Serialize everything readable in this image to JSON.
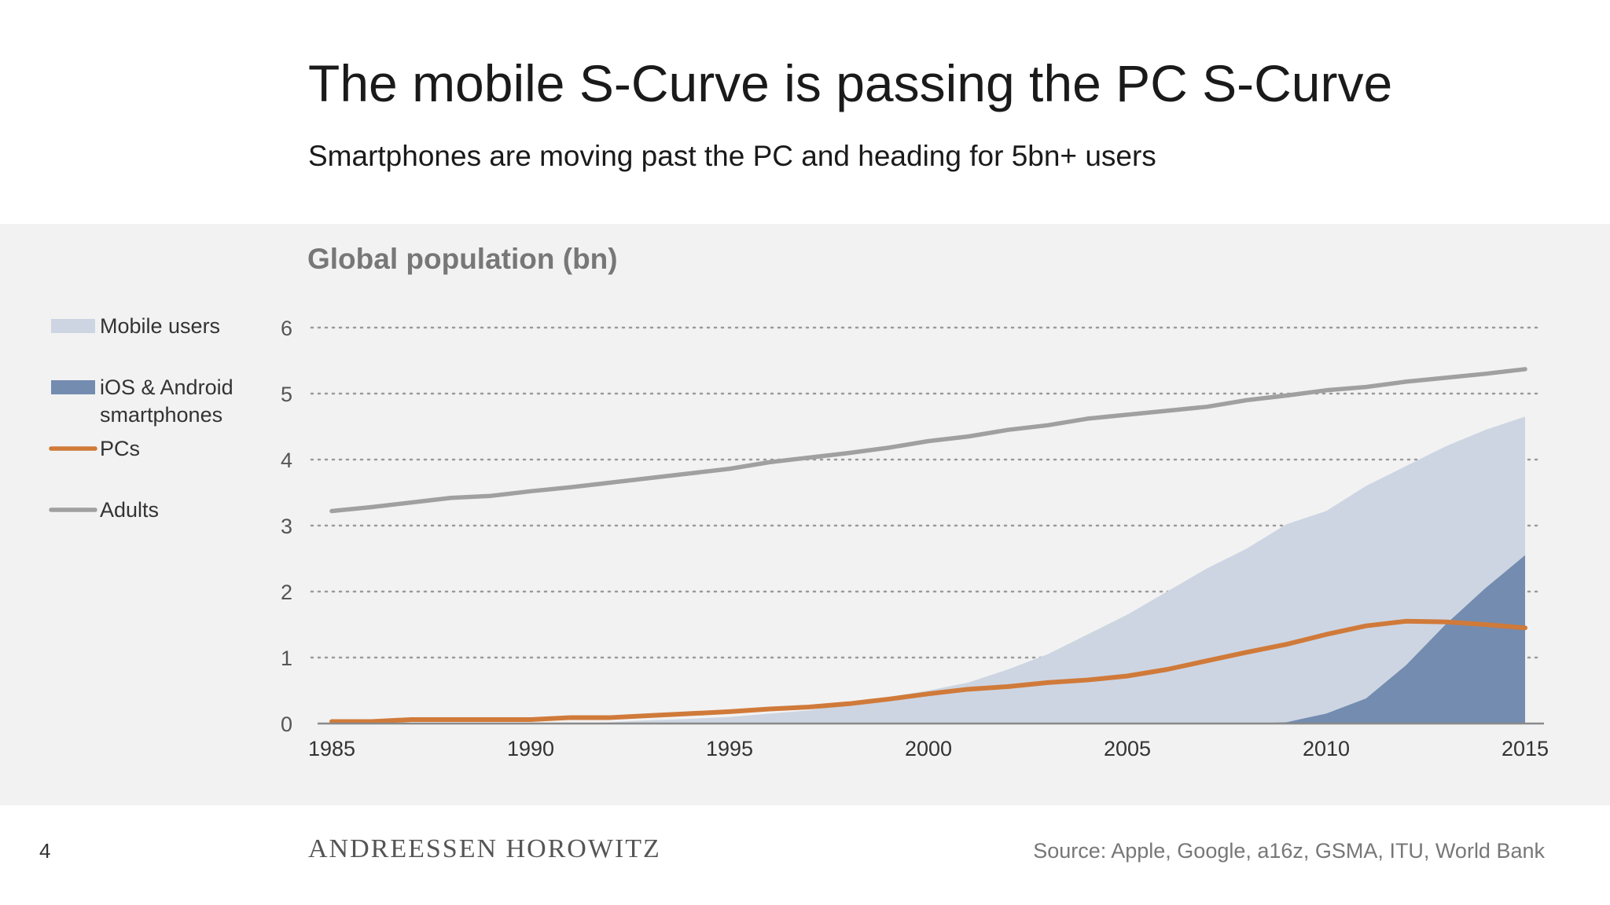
{
  "slide": {
    "title": "The mobile S-Curve is passing the PC S-Curve",
    "subtitle": "Smartphones are moving past the PC and heading for 5bn+ users",
    "page_number": "4",
    "brand": "ANDREESSEN HOROWITZ",
    "source": "Source: Apple, Google, a16z, GSMA, ITU, World Bank"
  },
  "colors": {
    "panel_bg": "#f2f2f2",
    "mobile_users": "#cdd5e2",
    "smartphones": "#738cb0",
    "pcs": "#d07a3a",
    "adults": "#a0a0a0",
    "grid": "#9a9a9a",
    "axis_text": "#555555",
    "chart_title": "#777777"
  },
  "chart_data": {
    "type": "area",
    "title": "Global population (bn)",
    "xlabel": "",
    "ylabel": "",
    "xlim": [
      1985,
      2015
    ],
    "ylim": [
      0,
      6
    ],
    "x_ticks": [
      "1985",
      "1990",
      "1995",
      "2000",
      "2005",
      "2010",
      "2015"
    ],
    "y_ticks": [
      "0",
      "1",
      "2",
      "3",
      "4",
      "5",
      "6"
    ],
    "grid": "horizontal dotted",
    "legend_position": "left",
    "series": [
      {
        "name": "Mobile users",
        "kind": "area",
        "x": [
          1985,
          1986,
          1987,
          1988,
          1989,
          1990,
          1991,
          1992,
          1993,
          1994,
          1995,
          1996,
          1997,
          1998,
          1999,
          2000,
          2001,
          2002,
          2003,
          2004,
          2005,
          2006,
          2007,
          2008,
          2009,
          2010,
          2011,
          2012,
          2013,
          2014,
          2015
        ],
        "y": [
          0,
          0,
          0,
          0,
          0,
          0,
          0,
          0.02,
          0.05,
          0.07,
          0.1,
          0.15,
          0.2,
          0.3,
          0.4,
          0.5,
          0.62,
          0.82,
          1.05,
          1.35,
          1.65,
          2.0,
          2.35,
          2.65,
          3.02,
          3.22,
          3.6,
          3.9,
          4.2,
          4.45,
          4.65
        ]
      },
      {
        "name": "iOS & Android smartphones",
        "kind": "area",
        "x": [
          2008,
          2009,
          2010,
          2011,
          2012,
          2013,
          2014,
          2015
        ],
        "y": [
          0,
          0.02,
          0.15,
          0.38,
          0.88,
          1.5,
          2.05,
          2.55
        ]
      },
      {
        "name": "PCs",
        "kind": "line",
        "x": [
          1985,
          1986,
          1987,
          1988,
          1989,
          1990,
          1991,
          1992,
          1993,
          1994,
          1995,
          1996,
          1997,
          1998,
          1999,
          2000,
          2001,
          2002,
          2003,
          2004,
          2005,
          2006,
          2007,
          2008,
          2009,
          2010,
          2011,
          2012,
          2013,
          2014,
          2015
        ],
        "y": [
          0.03,
          0.03,
          0.06,
          0.06,
          0.06,
          0.06,
          0.09,
          0.09,
          0.12,
          0.15,
          0.18,
          0.22,
          0.25,
          0.3,
          0.37,
          0.45,
          0.52,
          0.56,
          0.62,
          0.66,
          0.72,
          0.82,
          0.95,
          1.08,
          1.2,
          1.35,
          1.48,
          1.55,
          1.54,
          1.5,
          1.45
        ]
      },
      {
        "name": "Adults",
        "kind": "line",
        "x": [
          1985,
          1986,
          1987,
          1988,
          1989,
          1990,
          1991,
          1992,
          1993,
          1994,
          1995,
          1996,
          1997,
          1998,
          1999,
          2000,
          2001,
          2002,
          2003,
          2004,
          2005,
          2006,
          2007,
          2008,
          2009,
          2010,
          2011,
          2012,
          2013,
          2014,
          2015
        ],
        "y": [
          3.22,
          3.28,
          3.35,
          3.42,
          3.45,
          3.52,
          3.58,
          3.65,
          3.72,
          3.79,
          3.86,
          3.96,
          4.03,
          4.1,
          4.18,
          4.28,
          4.35,
          4.45,
          4.52,
          4.62,
          4.68,
          4.74,
          4.8,
          4.9,
          4.97,
          5.05,
          5.1,
          5.18,
          5.24,
          5.3,
          5.37
        ]
      }
    ]
  }
}
